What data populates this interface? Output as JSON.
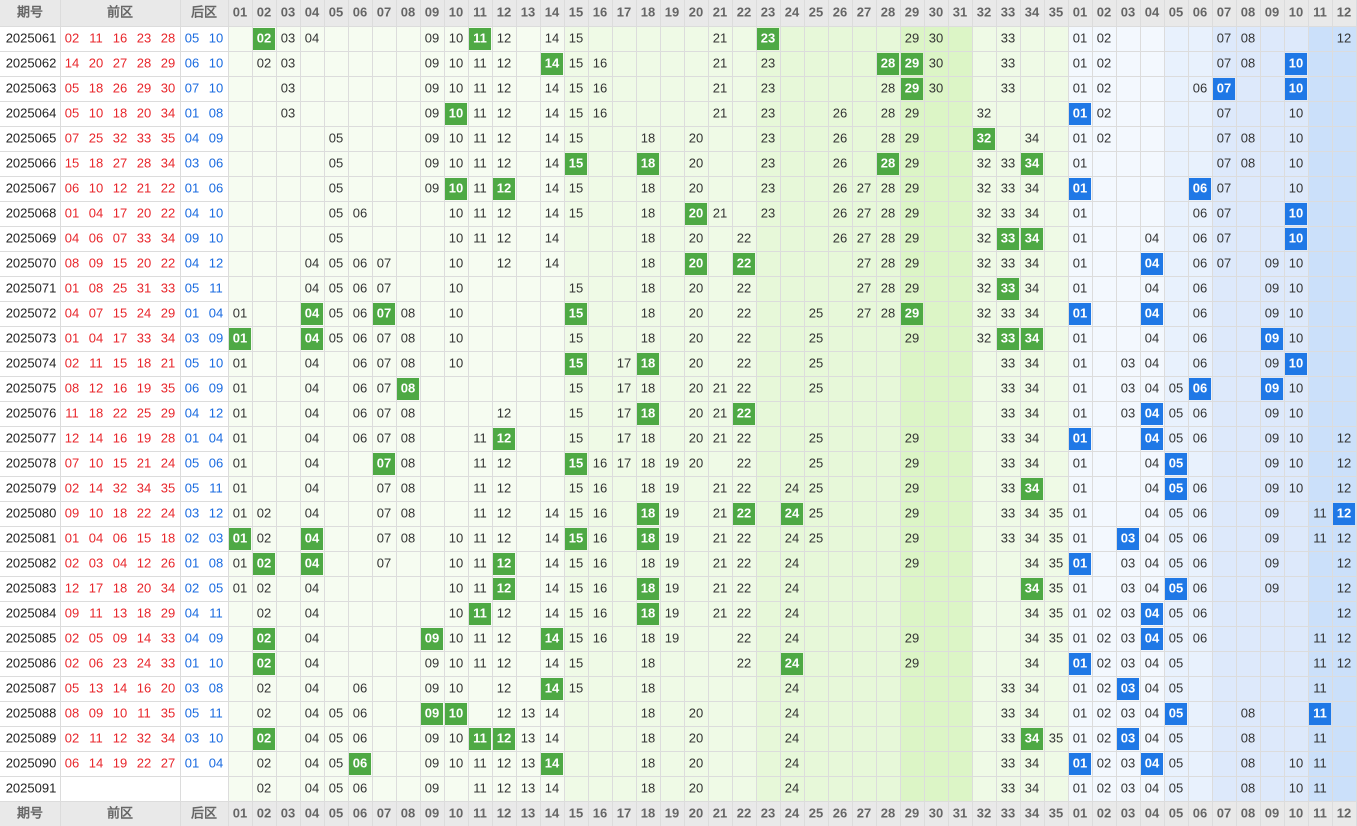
{
  "header": {
    "period": "期号",
    "front": "前区",
    "back": "后区",
    "front_columns": [
      "01",
      "02",
      "03",
      "04",
      "05",
      "06",
      "07",
      "08",
      "09",
      "10",
      "11",
      "12",
      "13",
      "14",
      "15",
      "16",
      "17",
      "18",
      "19",
      "20",
      "21",
      "22",
      "23",
      "24",
      "25",
      "26",
      "27",
      "28",
      "29",
      "30",
      "31",
      "32",
      "33",
      "34",
      "35"
    ],
    "back_columns": [
      "01",
      "02",
      "03",
      "04",
      "05",
      "06",
      "07",
      "08",
      "09",
      "10",
      "11",
      "12"
    ]
  },
  "rows": [
    {
      "period": "2025061",
      "front": [
        "02",
        "11",
        "16",
        "23",
        "28"
      ],
      "back": [
        "05",
        "10"
      ],
      "front_chart": [
        "03",
        "04",
        "09",
        "10",
        "12",
        "14",
        "15",
        "21",
        "29",
        "30",
        "33"
      ],
      "front_hits": [
        "02",
        "11",
        "23"
      ],
      "back_chart": [
        "01",
        "02",
        "07",
        "08",
        "12"
      ]
    },
    {
      "period": "2025062",
      "front": [
        "14",
        "20",
        "27",
        "28",
        "29"
      ],
      "back": [
        "06",
        "10"
      ],
      "front_chart": [
        "02",
        "03",
        "09",
        "10",
        "11",
        "12",
        "15",
        "16",
        "21",
        "23",
        "30",
        "33"
      ],
      "front_hits": [
        "14",
        "28",
        "29"
      ],
      "back_chart": [
        "01",
        "02",
        "07",
        "08"
      ],
      "back_hits": [
        "10"
      ]
    },
    {
      "period": "2025063",
      "front": [
        "05",
        "18",
        "26",
        "29",
        "30"
      ],
      "back": [
        "07",
        "10"
      ],
      "front_chart": [
        "03",
        "09",
        "10",
        "11",
        "12",
        "14",
        "15",
        "16",
        "21",
        "23",
        "28",
        "30",
        "33"
      ],
      "front_hits": [
        "29"
      ],
      "back_chart": [
        "01",
        "02",
        "06"
      ],
      "back_hits": [
        "07",
        "10"
      ]
    },
    {
      "period": "2025064",
      "front": [
        "05",
        "10",
        "18",
        "20",
        "34"
      ],
      "back": [
        "01",
        "08"
      ],
      "front_chart": [
        "03",
        "09",
        "11",
        "12",
        "14",
        "15",
        "16",
        "21",
        "23",
        "26",
        "28",
        "29",
        "32"
      ],
      "front_hits": [
        "10"
      ],
      "back_chart": [
        "02",
        "07",
        "10"
      ],
      "back_hits": [
        "01"
      ]
    },
    {
      "period": "2025065",
      "front": [
        "07",
        "25",
        "32",
        "33",
        "35"
      ],
      "back": [
        "04",
        "09"
      ],
      "front_chart": [
        "05",
        "09",
        "10",
        "11",
        "12",
        "14",
        "15",
        "18",
        "20",
        "23",
        "26",
        "28",
        "29",
        "34"
      ],
      "front_hits": [
        "32"
      ],
      "back_chart": [
        "01",
        "02",
        "07",
        "08",
        "10"
      ]
    },
    {
      "period": "2025066",
      "front": [
        "15",
        "18",
        "27",
        "28",
        "34"
      ],
      "back": [
        "03",
        "06"
      ],
      "front_chart": [
        "05",
        "09",
        "10",
        "11",
        "12",
        "14",
        "20",
        "23",
        "26",
        "29",
        "32",
        "33"
      ],
      "front_hits": [
        "15",
        "18",
        "28",
        "34"
      ],
      "back_chart": [
        "01",
        "07",
        "08",
        "10"
      ]
    },
    {
      "period": "2025067",
      "front": [
        "06",
        "10",
        "12",
        "21",
        "22"
      ],
      "back": [
        "01",
        "06"
      ],
      "front_chart": [
        "05",
        "09",
        "11",
        "14",
        "15",
        "18",
        "20",
        "23",
        "26",
        "27",
        "28",
        "29",
        "32",
        "33",
        "34"
      ],
      "front_hits": [
        "10",
        "12"
      ],
      "back_chart": [
        "07",
        "10"
      ],
      "back_hits": [
        "01",
        "06"
      ]
    },
    {
      "period": "2025068",
      "front": [
        "01",
        "04",
        "17",
        "20",
        "22"
      ],
      "back": [
        "04",
        "10"
      ],
      "front_chart": [
        "05",
        "06",
        "10",
        "11",
        "12",
        "14",
        "15",
        "18",
        "21",
        "23",
        "26",
        "27",
        "28",
        "29",
        "32",
        "33",
        "34"
      ],
      "front_hits": [
        "20"
      ],
      "back_chart": [
        "01",
        "06",
        "07"
      ],
      "back_hits": [
        "10"
      ]
    },
    {
      "period": "2025069",
      "front": [
        "04",
        "06",
        "07",
        "33",
        "34"
      ],
      "back": [
        "09",
        "10"
      ],
      "front_chart": [
        "05",
        "10",
        "11",
        "12",
        "14",
        "18",
        "20",
        "22",
        "26",
        "27",
        "28",
        "29",
        "32"
      ],
      "front_hits": [
        "33",
        "34"
      ],
      "back_chart": [
        "01",
        "04",
        "06",
        "07"
      ],
      "back_hits": [
        "10"
      ]
    },
    {
      "period": "2025070",
      "front": [
        "08",
        "09",
        "15",
        "20",
        "22"
      ],
      "back": [
        "04",
        "12"
      ],
      "front_chart": [
        "04",
        "05",
        "06",
        "07",
        "10",
        "12",
        "14",
        "18",
        "27",
        "28",
        "29",
        "32",
        "33",
        "34"
      ],
      "front_hits": [
        "20",
        "22"
      ],
      "back_chart": [
        "01",
        "06",
        "07",
        "09",
        "10"
      ],
      "back_hits": [
        "04"
      ]
    },
    {
      "period": "2025071",
      "front": [
        "01",
        "08",
        "25",
        "31",
        "33"
      ],
      "back": [
        "05",
        "11"
      ],
      "front_chart": [
        "04",
        "05",
        "06",
        "07",
        "10",
        "15",
        "18",
        "20",
        "22",
        "27",
        "28",
        "29",
        "32",
        "34"
      ],
      "front_hits": [
        "33"
      ],
      "back_chart": [
        "01",
        "04",
        "06",
        "09",
        "10"
      ]
    },
    {
      "period": "2025072",
      "front": [
        "04",
        "07",
        "15",
        "24",
        "29"
      ],
      "back": [
        "01",
        "04"
      ],
      "front_chart": [
        "01",
        "05",
        "06",
        "08",
        "10",
        "18",
        "20",
        "22",
        "25",
        "27",
        "28",
        "32",
        "33",
        "34"
      ],
      "front_hits": [
        "04",
        "07",
        "15",
        "29"
      ],
      "back_chart": [
        "06",
        "09",
        "10"
      ],
      "back_hits": [
        "01",
        "04"
      ]
    },
    {
      "period": "2025073",
      "front": [
        "01",
        "04",
        "17",
        "33",
        "34"
      ],
      "back": [
        "03",
        "09"
      ],
      "front_chart": [
        "05",
        "06",
        "07",
        "08",
        "10",
        "15",
        "18",
        "20",
        "22",
        "25",
        "29",
        "32"
      ],
      "front_hits": [
        "01",
        "04",
        "33",
        "34"
      ],
      "back_chart": [
        "01",
        "04",
        "06",
        "10"
      ],
      "back_hits": [
        "09"
      ]
    },
    {
      "period": "2025074",
      "front": [
        "02",
        "11",
        "15",
        "18",
        "21"
      ],
      "back": [
        "05",
        "10"
      ],
      "front_chart": [
        "01",
        "04",
        "06",
        "07",
        "08",
        "10",
        "17",
        "20",
        "22",
        "25",
        "33",
        "34"
      ],
      "front_hits": [
        "15",
        "18"
      ],
      "back_chart": [
        "01",
        "03",
        "04",
        "06",
        "09"
      ],
      "back_hits": [
        "10"
      ]
    },
    {
      "period": "2025075",
      "front": [
        "08",
        "12",
        "16",
        "19",
        "35"
      ],
      "back": [
        "06",
        "09"
      ],
      "front_chart": [
        "01",
        "04",
        "06",
        "07",
        "15",
        "17",
        "18",
        "20",
        "21",
        "22",
        "25",
        "33",
        "34"
      ],
      "front_hits": [
        "08"
      ],
      "back_chart": [
        "01",
        "03",
        "04",
        "05",
        "10"
      ],
      "back_hits": [
        "06",
        "09"
      ]
    },
    {
      "period": "2025076",
      "front": [
        "11",
        "18",
        "22",
        "25",
        "29"
      ],
      "back": [
        "04",
        "12"
      ],
      "front_chart": [
        "01",
        "04",
        "06",
        "07",
        "08",
        "12",
        "15",
        "17",
        "20",
        "21",
        "33",
        "34"
      ],
      "front_hits": [
        "18",
        "22"
      ],
      "back_chart": [
        "01",
        "03",
        "05",
        "06",
        "09",
        "10"
      ],
      "back_hits": [
        "04"
      ]
    },
    {
      "period": "2025077",
      "front": [
        "12",
        "14",
        "16",
        "19",
        "28"
      ],
      "back": [
        "01",
        "04"
      ],
      "front_chart": [
        "01",
        "04",
        "06",
        "07",
        "08",
        "11",
        "15",
        "17",
        "18",
        "20",
        "21",
        "22",
        "25",
        "29",
        "33",
        "34"
      ],
      "front_hits": [
        "12"
      ],
      "back_chart": [
        "05",
        "06",
        "09",
        "10",
        "12"
      ],
      "back_hits": [
        "01",
        "04"
      ]
    },
    {
      "period": "2025078",
      "front": [
        "07",
        "10",
        "15",
        "21",
        "24"
      ],
      "back": [
        "05",
        "06"
      ],
      "front_chart": [
        "01",
        "04",
        "08",
        "11",
        "12",
        "16",
        "17",
        "18",
        "19",
        "20",
        "22",
        "25",
        "29",
        "33",
        "34"
      ],
      "front_hits": [
        "07",
        "15"
      ],
      "back_chart": [
        "01",
        "04",
        "09",
        "10",
        "12"
      ],
      "back_hits": [
        "05"
      ]
    },
    {
      "period": "2025079",
      "front": [
        "02",
        "14",
        "32",
        "34",
        "35"
      ],
      "back": [
        "05",
        "11"
      ],
      "front_chart": [
        "01",
        "04",
        "07",
        "08",
        "11",
        "12",
        "15",
        "16",
        "18",
        "19",
        "21",
        "22",
        "24",
        "25",
        "29",
        "33"
      ],
      "front_hits": [
        "34"
      ],
      "back_chart": [
        "01",
        "04",
        "06",
        "09",
        "10",
        "12"
      ],
      "back_hits": [
        "05"
      ]
    },
    {
      "period": "2025080",
      "front": [
        "09",
        "10",
        "18",
        "22",
        "24"
      ],
      "back": [
        "03",
        "12"
      ],
      "front_chart": [
        "01",
        "02",
        "04",
        "07",
        "08",
        "11",
        "12",
        "14",
        "15",
        "16",
        "19",
        "21",
        "25",
        "29",
        "33",
        "34",
        "35"
      ],
      "front_hits": [
        "18",
        "22",
        "24"
      ],
      "back_chart": [
        "01",
        "04",
        "05",
        "06",
        "09",
        "11"
      ],
      "back_hits": [
        "12"
      ]
    },
    {
      "period": "2025081",
      "front": [
        "01",
        "04",
        "06",
        "15",
        "18"
      ],
      "back": [
        "02",
        "03"
      ],
      "front_chart": [
        "02",
        "07",
        "08",
        "10",
        "11",
        "12",
        "14",
        "16",
        "19",
        "21",
        "22",
        "24",
        "25",
        "29",
        "33",
        "34",
        "35"
      ],
      "front_hits": [
        "01",
        "04",
        "15",
        "18"
      ],
      "back_chart": [
        "01",
        "04",
        "05",
        "06",
        "09",
        "11",
        "12"
      ],
      "back_hits": [
        "03"
      ]
    },
    {
      "period": "2025082",
      "front": [
        "02",
        "03",
        "04",
        "12",
        "26"
      ],
      "back": [
        "01",
        "08"
      ],
      "front_chart": [
        "01",
        "07",
        "10",
        "11",
        "14",
        "15",
        "16",
        "18",
        "19",
        "21",
        "22",
        "24",
        "29",
        "34",
        "35"
      ],
      "front_hits": [
        "02",
        "04",
        "12"
      ],
      "back_chart": [
        "03",
        "04",
        "05",
        "06",
        "09",
        "12"
      ],
      "back_hits": [
        "01"
      ]
    },
    {
      "period": "2025083",
      "front": [
        "12",
        "17",
        "18",
        "20",
        "34"
      ],
      "back": [
        "02",
        "05"
      ],
      "front_chart": [
        "01",
        "02",
        "04",
        "10",
        "11",
        "14",
        "15",
        "16",
        "19",
        "21",
        "22",
        "24",
        "35"
      ],
      "front_hits": [
        "12",
        "18",
        "34"
      ],
      "back_chart": [
        "01",
        "03",
        "04",
        "06",
        "09",
        "12"
      ],
      "back_hits": [
        "05"
      ]
    },
    {
      "period": "2025084",
      "front": [
        "09",
        "11",
        "13",
        "18",
        "29"
      ],
      "back": [
        "04",
        "11"
      ],
      "front_chart": [
        "02",
        "04",
        "10",
        "12",
        "14",
        "15",
        "16",
        "19",
        "21",
        "22",
        "24",
        "34",
        "35"
      ],
      "front_hits": [
        "11",
        "18"
      ],
      "back_chart": [
        "01",
        "02",
        "03",
        "05",
        "06",
        "12"
      ],
      "back_hits": [
        "04"
      ]
    },
    {
      "period": "2025085",
      "front": [
        "02",
        "05",
        "09",
        "14",
        "33"
      ],
      "back": [
        "04",
        "09"
      ],
      "front_chart": [
        "04",
        "10",
        "11",
        "12",
        "15",
        "16",
        "18",
        "19",
        "22",
        "24",
        "29",
        "34",
        "35"
      ],
      "front_hits": [
        "02",
        "09",
        "14"
      ],
      "back_chart": [
        "01",
        "02",
        "03",
        "05",
        "06",
        "11",
        "12"
      ],
      "back_hits": [
        "04"
      ]
    },
    {
      "period": "2025086",
      "front": [
        "02",
        "06",
        "23",
        "24",
        "33"
      ],
      "back": [
        "01",
        "10"
      ],
      "front_chart": [
        "04",
        "09",
        "10",
        "11",
        "12",
        "14",
        "15",
        "18",
        "22",
        "29",
        "34"
      ],
      "front_hits": [
        "02",
        "24"
      ],
      "back_chart": [
        "02",
        "03",
        "04",
        "05",
        "11",
        "12"
      ],
      "back_hits": [
        "01"
      ]
    },
    {
      "period": "2025087",
      "front": [
        "05",
        "13",
        "14",
        "16",
        "20"
      ],
      "back": [
        "03",
        "08"
      ],
      "front_chart": [
        "02",
        "04",
        "06",
        "09",
        "10",
        "12",
        "15",
        "18",
        "24",
        "33",
        "34"
      ],
      "front_hits": [
        "14"
      ],
      "back_chart": [
        "01",
        "02",
        "04",
        "05",
        "11"
      ],
      "back_hits": [
        "03"
      ]
    },
    {
      "period": "2025088",
      "front": [
        "08",
        "09",
        "10",
        "11",
        "35"
      ],
      "back": [
        "05",
        "11"
      ],
      "front_chart": [
        "02",
        "04",
        "05",
        "06",
        "12",
        "13",
        "14",
        "18",
        "20",
        "24",
        "33",
        "34"
      ],
      "front_hits": [
        "09",
        "10"
      ],
      "back_chart": [
        "01",
        "02",
        "03",
        "04",
        "08"
      ],
      "back_hits": [
        "05",
        "11"
      ]
    },
    {
      "period": "2025089",
      "front": [
        "02",
        "11",
        "12",
        "32",
        "34"
      ],
      "back": [
        "03",
        "10"
      ],
      "front_chart": [
        "04",
        "05",
        "06",
        "09",
        "10",
        "13",
        "14",
        "18",
        "20",
        "24",
        "33",
        "35"
      ],
      "front_hits": [
        "02",
        "11",
        "12",
        "34"
      ],
      "back_chart": [
        "01",
        "02",
        "04",
        "05",
        "08",
        "11"
      ],
      "back_hits": [
        "03"
      ]
    },
    {
      "period": "2025090",
      "front": [
        "06",
        "14",
        "19",
        "22",
        "27"
      ],
      "back": [
        "01",
        "04"
      ],
      "front_chart": [
        "02",
        "04",
        "05",
        "09",
        "10",
        "11",
        "12",
        "13",
        "18",
        "20",
        "24",
        "33",
        "34"
      ],
      "front_hits": [
        "06",
        "14"
      ],
      "back_chart": [
        "02",
        "03",
        "05",
        "08",
        "10",
        "11"
      ],
      "back_hits": [
        "01",
        "04"
      ]
    },
    {
      "period": "2025091",
      "front_chart": [
        "02",
        "04",
        "05",
        "06",
        "09",
        "11",
        "12",
        "13",
        "14",
        "18",
        "20",
        "24",
        "33",
        "34"
      ],
      "back_chart": [
        "01",
        "02",
        "03",
        "04",
        "05",
        "08",
        "10",
        "11"
      ]
    }
  ]
}
